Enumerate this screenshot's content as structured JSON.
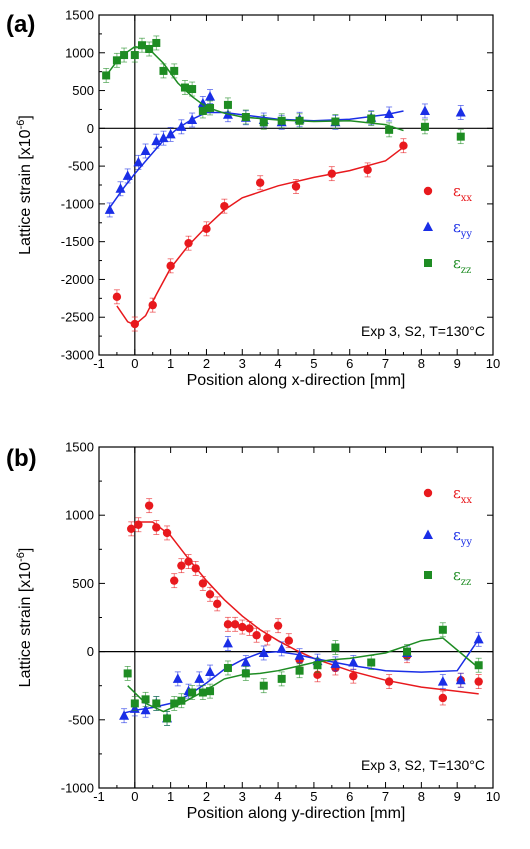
{
  "colors": {
    "xx": "#e8191d",
    "yy": "#1a2ee6",
    "zz": "#1e8c23"
  },
  "chart_data": [
    {
      "type": "scatter",
      "panel_label": "(a)",
      "xlabel": "Position along x-direction [mm]",
      "ylabel": "Lattice strain [x10",
      "ylabel_exp": "-6",
      "ylabel_close": "]",
      "xlim": [
        -1,
        10
      ],
      "ylim": [
        -3000,
        1500
      ],
      "xticks": [
        -1,
        0,
        1,
        2,
        3,
        4,
        5,
        6,
        7,
        8,
        9,
        10
      ],
      "yticks": [
        -3000,
        -2500,
        -2000,
        -1500,
        -1000,
        -500,
        0,
        500,
        1000,
        1500
      ],
      "annotation": "Exp 3, S2, T=130°C",
      "legend_position": "right",
      "legend": [
        {
          "symbol": "ε",
          "sub": "xx",
          "series": "xx"
        },
        {
          "symbol": "ε",
          "sub": "yy",
          "series": "yy"
        },
        {
          "symbol": "ε",
          "sub": "zz",
          "series": "zz"
        }
      ],
      "series": [
        {
          "key": "xx",
          "marker": "circle",
          "x": [
            -0.5,
            0,
            0.5,
            1,
            1.5,
            2,
            2.5,
            3.5,
            4.5,
            5.5,
            6.5,
            7.5
          ],
          "y": [
            -2230,
            -2590,
            -2340,
            -1820,
            -1520,
            -1330,
            -1030,
            -720,
            -770,
            -600,
            -550,
            -230
          ],
          "fit_x": [
            -0.5,
            -0.2,
            0,
            0.3,
            0.6,
            1,
            1.5,
            2,
            2.5,
            3,
            4,
            5,
            6,
            7,
            7.5
          ],
          "fit_y": [
            -2350,
            -2560,
            -2600,
            -2480,
            -2200,
            -1850,
            -1550,
            -1300,
            -1080,
            -920,
            -760,
            -650,
            -560,
            -430,
            -250
          ]
        },
        {
          "key": "yy",
          "marker": "triangle",
          "x": [
            -0.7,
            -0.4,
            -0.2,
            0.1,
            0.3,
            0.6,
            0.8,
            1,
            1.3,
            1.6,
            1.9,
            2.1,
            2.6,
            3.1,
            3.6,
            4.1,
            4.6,
            5.6,
            6.6,
            7.1,
            8.1,
            9.1
          ],
          "y": [
            -1080,
            -800,
            -630,
            -450,
            -300,
            -170,
            -130,
            -80,
            20,
            110,
            330,
            420,
            180,
            140,
            110,
            80,
            120,
            80,
            140,
            190,
            230,
            210
          ],
          "fit_x": [
            -0.7,
            -0.3,
            0,
            0.4,
            0.8,
            1.2,
            1.6,
            2,
            2.5,
            3,
            4,
            5,
            6,
            7,
            7.5
          ],
          "fit_y": [
            -1050,
            -780,
            -600,
            -380,
            -160,
            0,
            120,
            210,
            210,
            180,
            120,
            100,
            120,
            180,
            230
          ]
        },
        {
          "key": "zz",
          "marker": "square",
          "x": [
            -0.8,
            -0.5,
            -0.3,
            0,
            0.2,
            0.4,
            0.6,
            0.8,
            1.1,
            1.4,
            1.6,
            1.9,
            2.1,
            2.6,
            3.1,
            3.6,
            4.1,
            4.6,
            5.6,
            6.6,
            7.1,
            8.1,
            9.1
          ],
          "y": [
            700,
            900,
            970,
            970,
            1100,
            1050,
            1130,
            760,
            760,
            540,
            520,
            230,
            270,
            310,
            150,
            80,
            100,
            100,
            90,
            130,
            -20,
            20,
            -110
          ],
          "fit_x": [
            -0.8,
            -0.4,
            0,
            0.4,
            0.8,
            1.2,
            1.6,
            2,
            2.5,
            3,
            4,
            5,
            6,
            7,
            7.5
          ],
          "fit_y": [
            700,
            950,
            1080,
            1050,
            860,
            600,
            420,
            280,
            200,
            150,
            110,
            90,
            100,
            50,
            -30
          ]
        }
      ]
    },
    {
      "type": "scatter",
      "panel_label": "(b)",
      "xlabel": "Position along y-direction [mm]",
      "ylabel": "Lattice strain [x10",
      "ylabel_exp": "-6",
      "ylabel_close": "]",
      "xlim": [
        -1,
        10
      ],
      "ylim": [
        -1000,
        1500
      ],
      "xticks": [
        -1,
        0,
        1,
        2,
        3,
        4,
        5,
        6,
        7,
        8,
        9,
        10
      ],
      "yticks": [
        -1000,
        -500,
        0,
        500,
        1000,
        1500
      ],
      "annotation": "Exp 3, S2, T=130°C",
      "legend_position": "top-right",
      "legend": [
        {
          "symbol": "ε",
          "sub": "xx",
          "series": "xx"
        },
        {
          "symbol": "ε",
          "sub": "yy",
          "series": "yy"
        },
        {
          "symbol": "ε",
          "sub": "zz",
          "series": "zz"
        }
      ],
      "series": [
        {
          "key": "xx",
          "marker": "circle",
          "x": [
            -0.1,
            0.1,
            0.4,
            0.6,
            0.9,
            1.1,
            1.3,
            1.5,
            1.7,
            1.9,
            2.1,
            2.3,
            2.6,
            2.8,
            3.0,
            3.2,
            3.4,
            3.7,
            4.0,
            4.3,
            4.6,
            5.1,
            5.6,
            6.1,
            7.1,
            7.6,
            8.6,
            9.1,
            9.6
          ],
          "y": [
            900,
            930,
            1070,
            910,
            870,
            520,
            630,
            660,
            610,
            500,
            420,
            350,
            200,
            200,
            180,
            170,
            120,
            100,
            190,
            80,
            -60,
            -170,
            -120,
            -180,
            -220,
            -30,
            -340,
            -210,
            -220
          ],
          "fit_x": [
            0,
            0.5,
            1,
            1.5,
            2,
            2.5,
            3,
            3.5,
            4,
            4.5,
            5,
            6,
            7,
            8,
            9,
            9.6
          ],
          "fit_y": [
            950,
            950,
            850,
            680,
            520,
            380,
            260,
            160,
            80,
            10,
            -50,
            -140,
            -210,
            -260,
            -290,
            -310
          ]
        },
        {
          "key": "yy",
          "marker": "triangle",
          "x": [
            -0.3,
            0,
            0.3,
            0.6,
            0.9,
            1.2,
            1.5,
            1.8,
            2.1,
            2.6,
            3.1,
            3.6,
            4.1,
            4.6,
            5.1,
            5.6,
            6.1,
            7.6,
            8.6,
            9.1,
            9.6
          ],
          "y": [
            -470,
            -420,
            -430,
            -380,
            -490,
            -200,
            -290,
            -200,
            -150,
            60,
            -80,
            -10,
            20,
            -30,
            -70,
            -90,
            -80,
            -10,
            -220,
            -210,
            90
          ],
          "fit_x": [
            -0.3,
            0,
            0.5,
            1,
            1.5,
            2,
            2.5,
            3,
            3.5,
            4,
            4.5,
            5,
            6,
            7,
            8,
            9,
            9.6
          ],
          "fit_y": [
            -450,
            -430,
            -410,
            -380,
            -320,
            -230,
            -130,
            -60,
            -10,
            0,
            -20,
            -50,
            -100,
            -140,
            -150,
            -140,
            90
          ]
        },
        {
          "key": "zz",
          "marker": "square",
          "x": [
            -0.2,
            0,
            0.3,
            0.6,
            0.9,
            1.1,
            1.3,
            1.6,
            1.9,
            2.1,
            2.6,
            3.1,
            3.6,
            4.1,
            4.6,
            5.1,
            5.6,
            6.6,
            7.6,
            8.6,
            9.6
          ],
          "y": [
            -160,
            -380,
            -350,
            -380,
            -490,
            -380,
            -360,
            -300,
            -300,
            -290,
            -120,
            -160,
            -250,
            -200,
            -140,
            -100,
            30,
            -80,
            0,
            160,
            -100
          ],
          "fit_x": [
            -0.2,
            0.3,
            0.8,
            1.3,
            2,
            2.5,
            3,
            3.5,
            4,
            4.5,
            5,
            5.5,
            6,
            7,
            8,
            8.6,
            9.6
          ],
          "fit_y": [
            -250,
            -380,
            -440,
            -380,
            -280,
            -200,
            -170,
            -160,
            -140,
            -110,
            -80,
            -60,
            -50,
            -10,
            80,
            100,
            -120
          ]
        }
      ]
    }
  ]
}
